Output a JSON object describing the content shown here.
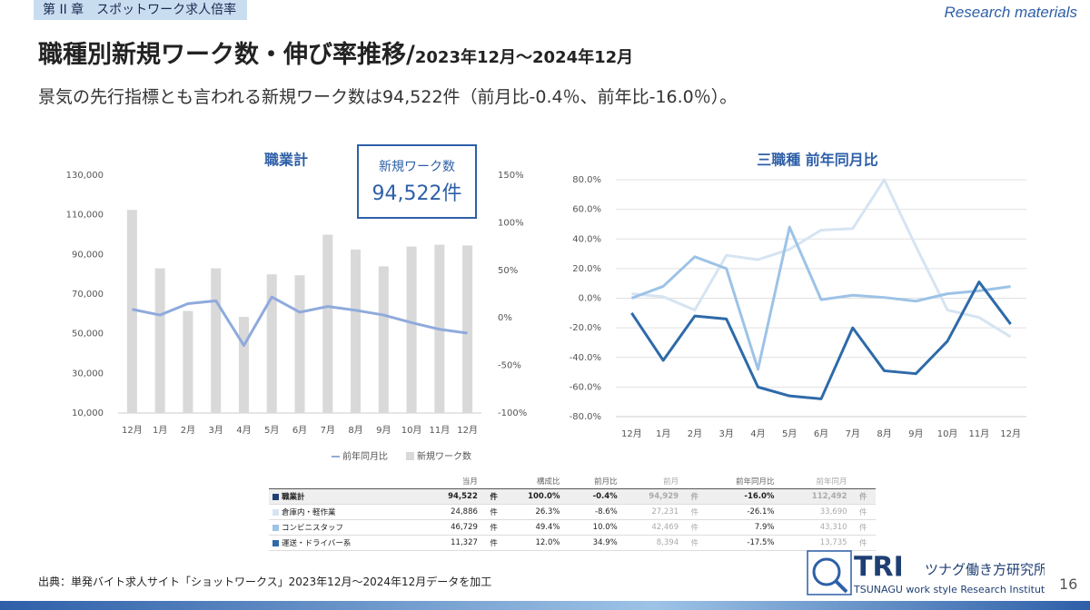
{
  "header": {
    "tag": "第 II 章　スポットワーク求人倍率",
    "brand": "Research materials",
    "title": "職種別新規ワーク数・伸び率推移/",
    "title_period": "2023年12月～2024年12月",
    "subtitle": "景気の先行指標とも言われる新規ワーク数は94,522件（前月比-0.4％、前年比-16.0％）。"
  },
  "chart_data": [
    {
      "type": "bar_line",
      "title": "職業計",
      "categories": [
        "12月",
        "1月",
        "2月",
        "3月",
        "4月",
        "5月",
        "6月",
        "7月",
        "8月",
        "9月",
        "10月",
        "11月",
        "12月"
      ],
      "series": [
        {
          "name": "前年同月比",
          "type": "line",
          "axis": "y2",
          "color": "#8faadc",
          "values": [
            9,
            3,
            15,
            18,
            -29,
            22,
            6,
            12,
            8,
            3,
            -5,
            -12,
            -16.0
          ]
        },
        {
          "name": "新規ワーク数",
          "type": "bar",
          "color": "#d9d9d9",
          "values": [
            112492,
            83000,
            61500,
            83000,
            58500,
            80000,
            79500,
            100000,
            92500,
            84000,
            94000,
            94929,
            94522
          ]
        }
      ],
      "ylim": [
        10000,
        130000
      ],
      "yticks": [
        {
          "value": 10000,
          "label": "10,000"
        },
        {
          "value": 30000,
          "label": "30,000"
        },
        {
          "value": 50000,
          "label": "50,000"
        },
        {
          "value": 70000,
          "label": "70,000"
        },
        {
          "value": 90000,
          "label": "90,000"
        },
        {
          "value": 110000,
          "label": "110,000"
        },
        {
          "value": 130000,
          "label": "130,000"
        }
      ],
      "y2lim": [
        -100,
        150
      ],
      "y2ticks": [
        {
          "value": -100,
          "label": "-100%"
        },
        {
          "value": -50,
          "label": "-50%"
        },
        {
          "value": 0,
          "label": "0%"
        },
        {
          "value": 50,
          "label": "50%"
        },
        {
          "value": 100,
          "label": "100%"
        },
        {
          "value": 150,
          "label": "150%"
        }
      ],
      "grid": false,
      "legend": "bottom"
    },
    {
      "type": "line",
      "title": "三職種 前年同月比",
      "categories": [
        "12月",
        "1月",
        "2月",
        "3月",
        "4月",
        "5月",
        "6月",
        "7月",
        "8月",
        "9月",
        "10月",
        "11月",
        "12月"
      ],
      "series": [
        {
          "color": "#d6e4f2",
          "values": [
            3,
            1,
            -8,
            29,
            26,
            33,
            46,
            47,
            80,
            35,
            -8,
            -13,
            -26.1
          ]
        },
        {
          "color": "#9dc3e6",
          "values": [
            0,
            8,
            28,
            20,
            -48,
            48,
            -1,
            2,
            0.5,
            -2,
            3,
            5,
            7.9
          ]
        },
        {
          "color": "#2e6aa8",
          "values": [
            -10,
            -42,
            -12,
            -14,
            -60,
            -66,
            -68,
            -20,
            -49,
            -51,
            -29,
            11,
            -17.5
          ]
        }
      ],
      "ylim": [
        -80,
        80
      ],
      "yticks": [
        {
          "value": -80,
          "label": "-80.0%"
        },
        {
          "value": -60,
          "label": "-60.0%"
        },
        {
          "value": -40,
          "label": "-40.0%"
        },
        {
          "value": -20,
          "label": "-20.0%"
        },
        {
          "value": 0,
          "label": "0.0%"
        },
        {
          "value": 20,
          "label": "20.0%"
        },
        {
          "value": 40,
          "label": "40.0%"
        },
        {
          "value": 60,
          "label": "60.0%"
        },
        {
          "value": 80,
          "label": "80.0%"
        }
      ],
      "grid": true
    }
  ],
  "callout": {
    "label": "新規ワーク数",
    "value": "94,522件"
  },
  "table": {
    "headers": [
      "当月",
      "構成比",
      "前月比",
      "前月",
      "前年同月比",
      "前年同月"
    ],
    "rows": [
      {
        "color": "#1f3f73",
        "cells": [
          "職業計",
          "94,522",
          "件",
          "100.0%",
          "-0.4%",
          "94,929",
          "件",
          "-16.0%",
          "112,492",
          "件"
        ]
      },
      {
        "color": "#d6e4f2",
        "cells": [
          "倉庫内・軽作業",
          "24,886",
          "件",
          "26.3%",
          "-8.6%",
          "27,231",
          "件",
          "-26.1%",
          "33,690",
          "件"
        ]
      },
      {
        "color": "#9dc3e6",
        "cells": [
          "コンビニスタッフ",
          "46,729",
          "件",
          "49.4%",
          "10.0%",
          "42,469",
          "件",
          "7.9%",
          "43,310",
          "件"
        ]
      },
      {
        "color": "#2e6aa8",
        "cells": [
          "運送・ドライバー系",
          "11,327",
          "件",
          "12.0%",
          "34.9%",
          "8,394",
          "件",
          "-17.5%",
          "13,735",
          "件"
        ]
      }
    ]
  },
  "footer": {
    "source": "出典：単発バイト求人サイト「ショットワークス」2023年12月～2024年12月データを加工",
    "logo_mark": "TRI",
    "logo_name": "ツナグ働き方研究所",
    "logo_en": "TSUNAGU work style Research Institute",
    "page": "16"
  }
}
